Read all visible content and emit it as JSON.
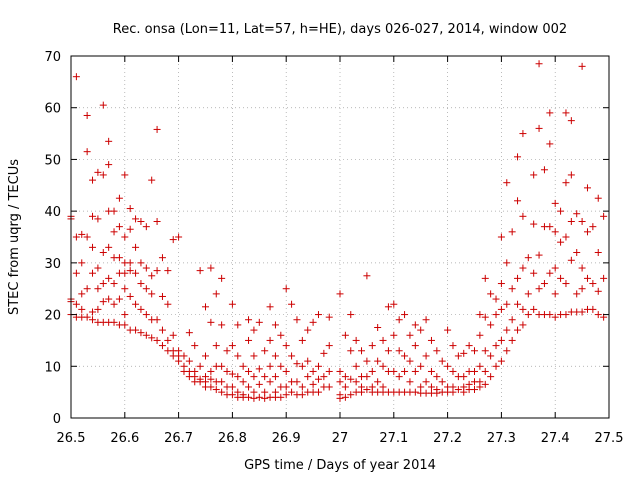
{
  "chart_data": {
    "type": "scatter",
    "title": "Rec. onsa (Lon=11, Lat=57, h=HE), days 026-027, 2014, window 002",
    "xlabel": "GPS time / Days of year 2014",
    "ylabel": "STEC from uqrg / TECUs",
    "xlim": [
      26.5,
      27.5
    ],
    "ylim": [
      0,
      70
    ],
    "grid": true,
    "marker": "plus",
    "marker_color": "#cc0000",
    "xticks": [
      "26.5",
      "26.6",
      "26.7",
      "26.8",
      "26.9",
      "27",
      "27.1",
      "27.2",
      "27.3",
      "27.4",
      "27.5"
    ],
    "yticks": [
      "0",
      "10",
      "20",
      "30",
      "40",
      "50",
      "60",
      "70"
    ],
    "points": [
      [
        26.5,
        39
      ],
      [
        26.5,
        38.5
      ],
      [
        26.5,
        23
      ],
      [
        26.5,
        22.5
      ],
      [
        26.5,
        20
      ],
      [
        26.51,
        66
      ],
      [
        26.51,
        35
      ],
      [
        26.51,
        28
      ],
      [
        26.51,
        22
      ],
      [
        26.51,
        19.5
      ],
      [
        26.52,
        35.5
      ],
      [
        26.52,
        30
      ],
      [
        26.52,
        24
      ],
      [
        26.52,
        21
      ],
      [
        26.52,
        19.5
      ],
      [
        26.53,
        58.5
      ],
      [
        26.53,
        51.5
      ],
      [
        26.53,
        35
      ],
      [
        26.53,
        25
      ],
      [
        26.53,
        19.5
      ],
      [
        26.54,
        46
      ],
      [
        26.54,
        39
      ],
      [
        26.54,
        33
      ],
      [
        26.54,
        28
      ],
      [
        26.54,
        20.5
      ],
      [
        26.54,
        19
      ],
      [
        26.55,
        47.5
      ],
      [
        26.55,
        38.5
      ],
      [
        26.55,
        29
      ],
      [
        26.55,
        25
      ],
      [
        26.55,
        21
      ],
      [
        26.55,
        18.5
      ],
      [
        26.56,
        60.5
      ],
      [
        26.56,
        47
      ],
      [
        26.56,
        32
      ],
      [
        26.56,
        26
      ],
      [
        26.56,
        22.5
      ],
      [
        26.56,
        18.5
      ],
      [
        26.57,
        53.5
      ],
      [
        26.57,
        49
      ],
      [
        26.57,
        40
      ],
      [
        26.57,
        33
      ],
      [
        26.57,
        27
      ],
      [
        26.57,
        23
      ],
      [
        26.57,
        18.5
      ],
      [
        26.58,
        40
      ],
      [
        26.58,
        36
      ],
      [
        26.58,
        31
      ],
      [
        26.58,
        26
      ],
      [
        26.58,
        22
      ],
      [
        26.58,
        18.5
      ],
      [
        26.59,
        42.5
      ],
      [
        26.59,
        37
      ],
      [
        26.59,
        31
      ],
      [
        26.59,
        28
      ],
      [
        26.59,
        23
      ],
      [
        26.59,
        18
      ],
      [
        26.6,
        47
      ],
      [
        26.6,
        35
      ],
      [
        26.6,
        30
      ],
      [
        26.6,
        28
      ],
      [
        26.6,
        25
      ],
      [
        26.6,
        20
      ],
      [
        26.6,
        18
      ],
      [
        26.61,
        40.5
      ],
      [
        26.61,
        36.5
      ],
      [
        26.61,
        30
      ],
      [
        26.61,
        28.5
      ],
      [
        26.61,
        23.5
      ],
      [
        26.61,
        17
      ],
      [
        26.62,
        38.5
      ],
      [
        26.62,
        33
      ],
      [
        26.62,
        28
      ],
      [
        26.62,
        22
      ],
      [
        26.62,
        17
      ],
      [
        26.63,
        38
      ],
      [
        26.63,
        30
      ],
      [
        26.63,
        26
      ],
      [
        26.63,
        21
      ],
      [
        26.63,
        16.5
      ],
      [
        26.64,
        37
      ],
      [
        26.64,
        29
      ],
      [
        26.64,
        25
      ],
      [
        26.64,
        20
      ],
      [
        26.64,
        16
      ],
      [
        26.65,
        46
      ],
      [
        26.65,
        27.5
      ],
      [
        26.65,
        24
      ],
      [
        26.65,
        19
      ],
      [
        26.65,
        15.5
      ],
      [
        26.66,
        55.8
      ],
      [
        26.66,
        38
      ],
      [
        26.66,
        28.5
      ],
      [
        26.66,
        19
      ],
      [
        26.66,
        15
      ],
      [
        26.67,
        31
      ],
      [
        26.67,
        23.5
      ],
      [
        26.67,
        17
      ],
      [
        26.67,
        14
      ],
      [
        26.68,
        28.5
      ],
      [
        26.68,
        22
      ],
      [
        26.68,
        15
      ],
      [
        26.68,
        13
      ],
      [
        26.69,
        34.5
      ],
      [
        26.69,
        16
      ],
      [
        26.69,
        13
      ],
      [
        26.69,
        12
      ],
      [
        26.7,
        35
      ],
      [
        26.7,
        13
      ],
      [
        26.7,
        12
      ],
      [
        26.7,
        11
      ],
      [
        26.71,
        12
      ],
      [
        26.71,
        10
      ],
      [
        26.71,
        9
      ],
      [
        26.72,
        16.5
      ],
      [
        26.72,
        11
      ],
      [
        26.72,
        9
      ],
      [
        26.72,
        8
      ],
      [
        26.73,
        14
      ],
      [
        26.73,
        9
      ],
      [
        26.73,
        8
      ],
      [
        26.73,
        7
      ],
      [
        26.74,
        28.5
      ],
      [
        26.74,
        10
      ],
      [
        26.74,
        7.5
      ],
      [
        26.74,
        7
      ],
      [
        26.75,
        21.5
      ],
      [
        26.75,
        12
      ],
      [
        26.75,
        8
      ],
      [
        26.75,
        7
      ],
      [
        26.75,
        6
      ],
      [
        26.76,
        29
      ],
      [
        26.76,
        18.5
      ],
      [
        26.76,
        9
      ],
      [
        26.76,
        7.5
      ],
      [
        26.76,
        6
      ],
      [
        26.77,
        24
      ],
      [
        26.77,
        14
      ],
      [
        26.77,
        10
      ],
      [
        26.77,
        7
      ],
      [
        26.77,
        5.5
      ],
      [
        26.78,
        27
      ],
      [
        26.78,
        18
      ],
      [
        26.78,
        10
      ],
      [
        26.78,
        7
      ],
      [
        26.78,
        5
      ],
      [
        26.79,
        13
      ],
      [
        26.79,
        9
      ],
      [
        26.79,
        6
      ],
      [
        26.79,
        4.5
      ],
      [
        26.8,
        22
      ],
      [
        26.8,
        14
      ],
      [
        26.8,
        8.5
      ],
      [
        26.8,
        6
      ],
      [
        26.8,
        4.5
      ],
      [
        26.81,
        18
      ],
      [
        26.81,
        12
      ],
      [
        26.81,
        8
      ],
      [
        26.81,
        5
      ],
      [
        26.81,
        4
      ],
      [
        26.82,
        10
      ],
      [
        26.82,
        7
      ],
      [
        26.82,
        4.5
      ],
      [
        26.82,
        4
      ],
      [
        26.83,
        19
      ],
      [
        26.83,
        15
      ],
      [
        26.83,
        9
      ],
      [
        26.83,
        6
      ],
      [
        26.83,
        4
      ],
      [
        26.84,
        17
      ],
      [
        26.84,
        12
      ],
      [
        26.84,
        8
      ],
      [
        26.84,
        5
      ],
      [
        26.84,
        3.8
      ],
      [
        26.85,
        18.5
      ],
      [
        26.85,
        9.5
      ],
      [
        26.85,
        6.5
      ],
      [
        26.85,
        4
      ],
      [
        26.86,
        13
      ],
      [
        26.86,
        8
      ],
      [
        26.86,
        5
      ],
      [
        26.86,
        3.8
      ],
      [
        26.87,
        21.5
      ],
      [
        26.87,
        15
      ],
      [
        26.87,
        10
      ],
      [
        26.87,
        7
      ],
      [
        26.87,
        4
      ],
      [
        26.88,
        18
      ],
      [
        26.88,
        12
      ],
      [
        26.88,
        8
      ],
      [
        26.88,
        5
      ],
      [
        26.88,
        4
      ],
      [
        26.89,
        16
      ],
      [
        26.89,
        10
      ],
      [
        26.89,
        6
      ],
      [
        26.89,
        4
      ],
      [
        26.9,
        25
      ],
      [
        26.9,
        14
      ],
      [
        26.9,
        9
      ],
      [
        26.9,
        6
      ],
      [
        26.9,
        4.5
      ],
      [
        26.91,
        22
      ],
      [
        26.91,
        12
      ],
      [
        26.91,
        7
      ],
      [
        26.91,
        5
      ],
      [
        26.92,
        19
      ],
      [
        26.92,
        10.5
      ],
      [
        26.92,
        7
      ],
      [
        26.92,
        4.5
      ],
      [
        26.93,
        15
      ],
      [
        26.93,
        10
      ],
      [
        26.93,
        6
      ],
      [
        26.93,
        4.5
      ],
      [
        26.94,
        17
      ],
      [
        26.94,
        11
      ],
      [
        26.94,
        8
      ],
      [
        26.94,
        5
      ],
      [
        26.95,
        18.5
      ],
      [
        26.95,
        9
      ],
      [
        26.95,
        6.5
      ],
      [
        26.95,
        5
      ],
      [
        26.96,
        20
      ],
      [
        26.96,
        10
      ],
      [
        26.96,
        7.5
      ],
      [
        26.96,
        5
      ],
      [
        26.97,
        12.5
      ],
      [
        26.97,
        8
      ],
      [
        26.97,
        6
      ],
      [
        26.98,
        19.5
      ],
      [
        26.98,
        14
      ],
      [
        26.98,
        9
      ],
      [
        26.98,
        6
      ],
      [
        27.0,
        24
      ],
      [
        27.0,
        9
      ],
      [
        27.0,
        7
      ],
      [
        27.0,
        4.5
      ],
      [
        27.0,
        3.8
      ],
      [
        27.01,
        16
      ],
      [
        27.01,
        8
      ],
      [
        27.01,
        6
      ],
      [
        27.01,
        4
      ],
      [
        27.02,
        20
      ],
      [
        27.02,
        13
      ],
      [
        27.02,
        7.5
      ],
      [
        27.02,
        4.5
      ],
      [
        27.03,
        15
      ],
      [
        27.03,
        10
      ],
      [
        27.03,
        7
      ],
      [
        27.03,
        5
      ],
      [
        27.04,
        13
      ],
      [
        27.04,
        8
      ],
      [
        27.04,
        6
      ],
      [
        27.04,
        5
      ],
      [
        27.05,
        27.5
      ],
      [
        27.05,
        11
      ],
      [
        27.05,
        8
      ],
      [
        27.05,
        5.5
      ],
      [
        27.06,
        14
      ],
      [
        27.06,
        9
      ],
      [
        27.06,
        6
      ],
      [
        27.06,
        5
      ],
      [
        27.07,
        17.5
      ],
      [
        27.07,
        11
      ],
      [
        27.07,
        7
      ],
      [
        27.07,
        5
      ],
      [
        27.08,
        15
      ],
      [
        27.08,
        10
      ],
      [
        27.08,
        6
      ],
      [
        27.08,
        5
      ],
      [
        27.09,
        21.5
      ],
      [
        27.09,
        13
      ],
      [
        27.09,
        9
      ],
      [
        27.09,
        5
      ],
      [
        27.1,
        22
      ],
      [
        27.1,
        16
      ],
      [
        27.1,
        9
      ],
      [
        27.1,
        5
      ],
      [
        27.11,
        19
      ],
      [
        27.11,
        13
      ],
      [
        27.11,
        8
      ],
      [
        27.11,
        5
      ],
      [
        27.12,
        20
      ],
      [
        27.12,
        12
      ],
      [
        27.12,
        9
      ],
      [
        27.12,
        5
      ],
      [
        27.13,
        16
      ],
      [
        27.13,
        11
      ],
      [
        27.13,
        7
      ],
      [
        27.13,
        5
      ],
      [
        27.14,
        18
      ],
      [
        27.14,
        14
      ],
      [
        27.14,
        9
      ],
      [
        27.14,
        5
      ],
      [
        27.15,
        17
      ],
      [
        27.15,
        10
      ],
      [
        27.15,
        6
      ],
      [
        27.15,
        4.8
      ],
      [
        27.16,
        19
      ],
      [
        27.16,
        12
      ],
      [
        27.16,
        7
      ],
      [
        27.16,
        4.8
      ],
      [
        27.17,
        15
      ],
      [
        27.17,
        9
      ],
      [
        27.17,
        6
      ],
      [
        27.17,
        4.8
      ],
      [
        27.18,
        13
      ],
      [
        27.18,
        8
      ],
      [
        27.18,
        5.5
      ],
      [
        27.18,
        4.8
      ],
      [
        27.19,
        11
      ],
      [
        27.19,
        7
      ],
      [
        27.19,
        5
      ],
      [
        27.2,
        17
      ],
      [
        27.2,
        10
      ],
      [
        27.2,
        6
      ],
      [
        27.2,
        5
      ],
      [
        27.21,
        14
      ],
      [
        27.21,
        9
      ],
      [
        27.21,
        6
      ],
      [
        27.21,
        5
      ],
      [
        27.22,
        12
      ],
      [
        27.22,
        8
      ],
      [
        27.22,
        5.5
      ],
      [
        27.23,
        12.5
      ],
      [
        27.23,
        8
      ],
      [
        27.23,
        6
      ],
      [
        27.23,
        5
      ],
      [
        27.24,
        14
      ],
      [
        27.24,
        9
      ],
      [
        27.24,
        6.5
      ],
      [
        27.24,
        5.5
      ],
      [
        27.25,
        13
      ],
      [
        27.25,
        9
      ],
      [
        27.25,
        7
      ],
      [
        27.25,
        5.5
      ],
      [
        27.26,
        20
      ],
      [
        27.26,
        16
      ],
      [
        27.26,
        10
      ],
      [
        27.26,
        7
      ],
      [
        27.26,
        6
      ],
      [
        27.27,
        27
      ],
      [
        27.27,
        19.5
      ],
      [
        27.27,
        13
      ],
      [
        27.27,
        9
      ],
      [
        27.27,
        6.5
      ],
      [
        27.28,
        24
      ],
      [
        27.28,
        18
      ],
      [
        27.28,
        12
      ],
      [
        27.28,
        8
      ],
      [
        27.29,
        23
      ],
      [
        27.29,
        20
      ],
      [
        27.29,
        14
      ],
      [
        27.29,
        10
      ],
      [
        27.3,
        35
      ],
      [
        27.3,
        26
      ],
      [
        27.3,
        21
      ],
      [
        27.3,
        15
      ],
      [
        27.3,
        11
      ],
      [
        27.31,
        45.5
      ],
      [
        27.31,
        30
      ],
      [
        27.31,
        22
      ],
      [
        27.31,
        17
      ],
      [
        27.31,
        13
      ],
      [
        27.32,
        36
      ],
      [
        27.32,
        25
      ],
      [
        27.32,
        19
      ],
      [
        27.32,
        15
      ],
      [
        27.33,
        50.5
      ],
      [
        27.33,
        42
      ],
      [
        27.33,
        27
      ],
      [
        27.33,
        22
      ],
      [
        27.33,
        17
      ],
      [
        27.34,
        55
      ],
      [
        27.34,
        39
      ],
      [
        27.34,
        29
      ],
      [
        27.34,
        21
      ],
      [
        27.34,
        18
      ],
      [
        27.35,
        31
      ],
      [
        27.35,
        24
      ],
      [
        27.35,
        20
      ],
      [
        27.36,
        47
      ],
      [
        27.36,
        37.5
      ],
      [
        27.36,
        28
      ],
      [
        27.36,
        21
      ],
      [
        27.37,
        68.5
      ],
      [
        27.37,
        56
      ],
      [
        27.37,
        31.5
      ],
      [
        27.37,
        25
      ],
      [
        27.37,
        20
      ],
      [
        27.38,
        48
      ],
      [
        27.38,
        37
      ],
      [
        27.38,
        26
      ],
      [
        27.38,
        20
      ],
      [
        27.39,
        59
      ],
      [
        27.39,
        53
      ],
      [
        27.39,
        37
      ],
      [
        27.39,
        28
      ],
      [
        27.39,
        20
      ],
      [
        27.4,
        41.5
      ],
      [
        27.4,
        36
      ],
      [
        27.4,
        29
      ],
      [
        27.4,
        24
      ],
      [
        27.4,
        19.5
      ],
      [
        27.41,
        40
      ],
      [
        27.41,
        34
      ],
      [
        27.41,
        27
      ],
      [
        27.41,
        20
      ],
      [
        27.42,
        59
      ],
      [
        27.42,
        45.5
      ],
      [
        27.42,
        35
      ],
      [
        27.42,
        26
      ],
      [
        27.42,
        20
      ],
      [
        27.43,
        57.5
      ],
      [
        27.43,
        47
      ],
      [
        27.43,
        38
      ],
      [
        27.43,
        30.5
      ],
      [
        27.43,
        20.5
      ],
      [
        27.44,
        39.5
      ],
      [
        27.44,
        32
      ],
      [
        27.44,
        24
      ],
      [
        27.44,
        20.5
      ],
      [
        27.45,
        68
      ],
      [
        27.45,
        38
      ],
      [
        27.45,
        29
      ],
      [
        27.45,
        25
      ],
      [
        27.45,
        20.5
      ],
      [
        27.46,
        44.5
      ],
      [
        27.46,
        36
      ],
      [
        27.46,
        27
      ],
      [
        27.46,
        21
      ],
      [
        27.47,
        37
      ],
      [
        27.47,
        26
      ],
      [
        27.47,
        21
      ],
      [
        27.48,
        42.5
      ],
      [
        27.48,
        32
      ],
      [
        27.48,
        24.5
      ],
      [
        27.48,
        20
      ],
      [
        27.49,
        39
      ],
      [
        27.49,
        27
      ],
      [
        27.49,
        19.5
      ]
    ]
  }
}
